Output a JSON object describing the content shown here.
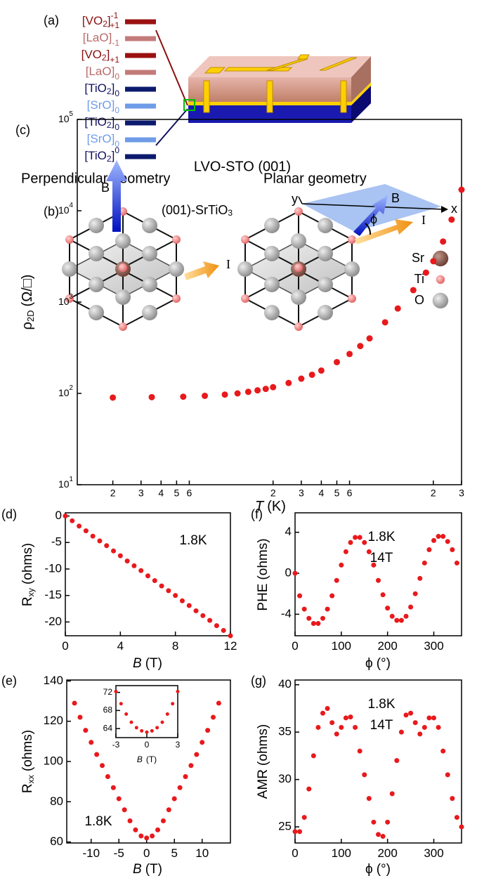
{
  "diagram_a": {
    "label": "(a)",
    "layers": [
      {
        "base": "[VO",
        "sub": "2",
        "close": "]",
        "sup": "-1",
        "lower": "+1",
        "color": "#9b1111",
        "text_color": "#8b1010"
      },
      {
        "base": "[LaO]",
        "lower": "-1",
        "color": "#c47a7a",
        "text_color": "#b86a6a"
      },
      {
        "base": "[VO",
        "sub": "2",
        "close": "]",
        "lower": "+1",
        "color": "#9b1111",
        "text_color": "#8b1010"
      },
      {
        "base": "[LaO]",
        "lower": "0",
        "color": "#c47a7a",
        "text_color": "#b86a6a"
      },
      {
        "base": "[TiO",
        "sub": "2",
        "close": "]",
        "lower": "0",
        "color": "#0c1a6e",
        "text_color": "#101060"
      },
      {
        "base": "[SrO]",
        "lower": "0",
        "color": "#6f9ce8",
        "text_color": "#6f9be8"
      },
      {
        "base": "[TiO",
        "sub": "2",
        "close": "]",
        "lower": "0",
        "color": "#0c1a6e",
        "text_color": "#101060"
      },
      {
        "base": "[SrO]",
        "lower": "0",
        "color": "#6f9ce8",
        "text_color": "#6f9be8"
      },
      {
        "base": "[TiO",
        "sub": "2",
        "close": "]",
        "sup": "0",
        "color": "#0c1a6e",
        "text_color": "#101060"
      }
    ]
  },
  "diagram_b": {
    "label": "(b)",
    "crystal": "(001)-SrTiO",
    "crystal_sub": "3",
    "perpendicular": {
      "title": "Perpendicular geometry",
      "field": "B",
      "current": "I"
    },
    "planar": {
      "title": "Planar geometry",
      "field": "B",
      "current": "I",
      "angle": "ϕ",
      "x_axis": "x",
      "y_axis": "y"
    },
    "legend": [
      {
        "name": "Sr",
        "color": "#8b5a50"
      },
      {
        "name": "Ti",
        "color": "#f08080"
      },
      {
        "name": "O",
        "color": "#a8a8a8"
      }
    ]
  },
  "chart_data": [
    {
      "type": "scatter",
      "label": "(c)",
      "annotations": [
        "LVO-STO (001)"
      ],
      "color": "#e8191c",
      "xlog": true,
      "ylog": true,
      "xlim": [
        1.2,
        300
      ],
      "ylim": [
        10,
        100000
      ],
      "xticks": [
        2,
        3,
        4,
        5,
        6,
        {
          "value": 20,
          "label": "2"
        },
        {
          "value": 30,
          "label": "3"
        },
        {
          "value": 40,
          "label": "4"
        },
        {
          "value": 50,
          "label": "5"
        },
        {
          "value": 60,
          "label": "6"
        },
        {
          "value": 200,
          "label": "2"
        },
        {
          "value": 300,
          "label": "3"
        }
      ],
      "yticks": [
        {
          "value": 10,
          "label": "10",
          "exp": "1"
        },
        {
          "value": 100,
          "label": "10",
          "exp": "2"
        },
        {
          "value": 1000,
          "label": "10",
          "exp": "3"
        },
        {
          "value": 10000,
          "label": "10",
          "exp": "4"
        },
        {
          "value": 100000,
          "label": "10",
          "exp": "5"
        }
      ],
      "xlabel": {
        "text": "T",
        "unit": "(K)",
        "italic": true
      },
      "ylabel": {
        "text": "ρ",
        "sub": "2D",
        "unit": "(Ω/□)"
      },
      "x": [
        2,
        3.5,
        5.5,
        7.5,
        10,
        12,
        14,
        16,
        18,
        20,
        25,
        30,
        35,
        40,
        50,
        60,
        70,
        80,
        100,
        120,
        150,
        180,
        200,
        230,
        260,
        300
      ],
      "values": [
        90,
        91,
        92,
        94,
        97,
        100,
        104,
        108,
        112,
        117,
        130,
        145,
        160,
        178,
        220,
        270,
        330,
        400,
        600,
        850,
        1350,
        2100,
        2800,
        4600,
        8000,
        17000
      ]
    },
    {
      "type": "scatter",
      "label": "(d)",
      "annotations": [
        "1.8K"
      ],
      "color": "#e8191c",
      "xlim": [
        0,
        12
      ],
      "ylim": [
        -22.6,
        0.6
      ],
      "xticks": [
        0,
        4,
        8,
        12
      ],
      "yticks": [
        0,
        -5,
        -10,
        -15,
        -20
      ],
      "xlabel": {
        "text": "B",
        "unit": "(T)",
        "italic": true
      },
      "ylabel": {
        "text": "R",
        "sub": "xy",
        "unit": "(ohms)"
      },
      "x": [
        0,
        0.5,
        1,
        1.5,
        2,
        2.5,
        3,
        3.5,
        4,
        4.5,
        5,
        5.5,
        6,
        6.5,
        7,
        7.5,
        8,
        8.5,
        9,
        9.5,
        10,
        10.5,
        11,
        11.5,
        12
      ],
      "values": [
        0,
        -0.9,
        -1.9,
        -2.8,
        -3.8,
        -4.7,
        -5.6,
        -6.6,
        -7.5,
        -8.5,
        -9.4,
        -10.3,
        -11.3,
        -12.2,
        -13.2,
        -14.1,
        -15.0,
        -16.0,
        -16.9,
        -17.9,
        -18.8,
        -19.7,
        -20.7,
        -21.6,
        -22.6
      ]
    },
    {
      "type": "scatter",
      "label": "(e)",
      "annotations": [
        "1.8K"
      ],
      "color": "#e8191c",
      "xlim": [
        -14.4,
        15.1
      ],
      "ylim": [
        59.5,
        140.5
      ],
      "xticks": [
        -10,
        -5,
        0,
        5,
        10
      ],
      "yticks": [
        60,
        80,
        100,
        120,
        140
      ],
      "xlabel": {
        "text": "B",
        "unit": "(T)",
        "italic": true
      },
      "ylabel": {
        "text": "R",
        "sub": "xx",
        "unit": "(ohms)"
      },
      "x": [
        -13,
        -12,
        -11,
        -10,
        -9,
        -8,
        -7,
        -6,
        -5,
        -4,
        -3,
        -2,
        -1,
        0,
        1,
        2,
        3,
        4,
        5,
        6,
        7,
        8,
        9,
        10,
        11,
        12,
        13
      ],
      "values": [
        129,
        122,
        115.5,
        109.5,
        103.5,
        98,
        92.5,
        87,
        81.5,
        76,
        70.5,
        66,
        63,
        62,
        63,
        66,
        70.5,
        76,
        81.5,
        87,
        92.5,
        98,
        103.5,
        109.5,
        115.5,
        122,
        129
      ],
      "inset": {
        "type": "scatter",
        "color": "#e8191c",
        "xlim": [
          -3,
          3
        ],
        "ylim": [
          62,
          73.5
        ],
        "xticks": [
          -3,
          0,
          3
        ],
        "yticks": [
          64,
          68,
          72
        ],
        "xlabel": {
          "text": "B",
          "unit": "(T)",
          "italic": true
        },
        "x": [
          -3,
          -2.5,
          -2,
          -1.5,
          -1,
          -0.5,
          0,
          0.5,
          1,
          1.5,
          2,
          2.5,
          3
        ],
        "values": [
          72.2,
          69.5,
          67.2,
          65.4,
          64.2,
          63.5,
          63.2,
          63.5,
          64.2,
          65.4,
          67.2,
          69.5,
          72.2
        ]
      }
    },
    {
      "type": "scatter",
      "label": "(f)",
      "annotations": [
        "1.8K",
        "14T"
      ],
      "color": "#e8191c",
      "xlim": [
        0,
        360
      ],
      "ylim": [
        -6.1,
        5.9
      ],
      "xticks": [
        0,
        100,
        200,
        300
      ],
      "yticks": [
        4,
        0,
        -4
      ],
      "xlabel": {
        "text": "ϕ",
        "unit": "(°)"
      },
      "ylabel": {
        "text": "PHE",
        "unit": "(ohms)"
      },
      "x": [
        0,
        10,
        20,
        30,
        40,
        50,
        60,
        70,
        80,
        90,
        100,
        110,
        120,
        130,
        140,
        150,
        160,
        170,
        180,
        190,
        200,
        210,
        220,
        230,
        240,
        250,
        260,
        270,
        280,
        290,
        300,
        310,
        320,
        330,
        340,
        350
      ],
      "values": [
        0,
        -2.2,
        -3.5,
        -4.4,
        -4.9,
        -4.9,
        -4.4,
        -3.5,
        -2.2,
        -0.7,
        0.8,
        2.1,
        3.0,
        3.5,
        3.5,
        3.0,
        2.1,
        0.8,
        -0.7,
        -2.1,
        -3.4,
        -4.2,
        -4.6,
        -4.6,
        -4.2,
        -3.3,
        -2.0,
        -0.5,
        1.0,
        2.3,
        3.2,
        3.6,
        3.6,
        3.1,
        2.3,
        1.0
      ]
    },
    {
      "type": "scatter",
      "label": "(g)",
      "annotations": [
        "1.8K",
        "14T"
      ],
      "color": "#e8191c",
      "xlim": [
        0,
        360
      ],
      "ylim": [
        23.3,
        40.5
      ],
      "xticks": [
        0,
        100,
        200,
        300
      ],
      "yticks": [
        25,
        30,
        35,
        40
      ],
      "xlabel": {
        "text": "ϕ",
        "unit": "(°)"
      },
      "ylabel": {
        "text": "AMR",
        "unit": "(ohms)"
      },
      "x": [
        0,
        10,
        20,
        30,
        40,
        50,
        60,
        70,
        80,
        90,
        100,
        110,
        120,
        130,
        140,
        150,
        160,
        170,
        180,
        190,
        200,
        210,
        220,
        230,
        240,
        250,
        260,
        270,
        280,
        290,
        300,
        310,
        320,
        330,
        340,
        350,
        360
      ],
      "values": [
        24.5,
        24.5,
        26,
        29,
        32.5,
        35.5,
        37,
        37.5,
        36,
        34.8,
        35.5,
        36.5,
        36.6,
        35.5,
        33,
        30.5,
        28,
        25.5,
        24.2,
        24,
        25.5,
        28.5,
        32,
        35,
        36.8,
        37,
        36,
        34.8,
        35.5,
        36.5,
        36.5,
        35.5,
        33,
        30.5,
        28,
        26,
        25
      ]
    }
  ]
}
